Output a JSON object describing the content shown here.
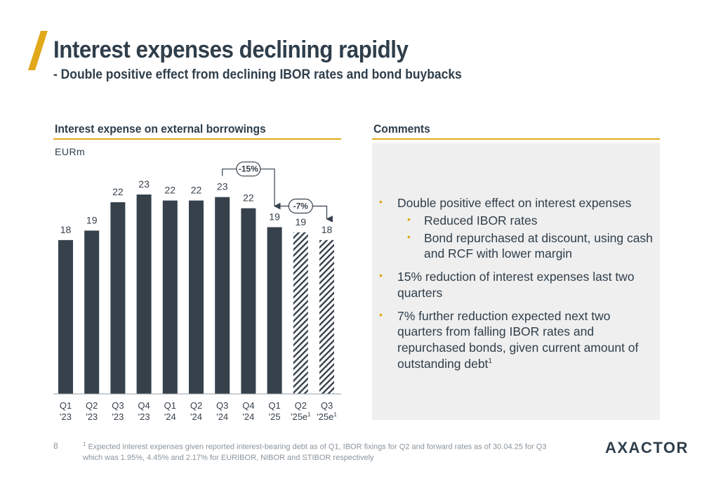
{
  "header": {
    "title": "Interest expenses declining rapidly",
    "subtitle": "- Double positive effect from declining IBOR rates and bond buybacks"
  },
  "left_section": {
    "title": "Interest expense on external borrowings",
    "unit": "EURm"
  },
  "right_section": {
    "title": "Comments",
    "bullets": [
      {
        "text": "Double positive effect on interest expenses",
        "sub": [
          "Reduced IBOR rates",
          "Bond repurchased at discount, using cash and RCF with lower margin"
        ]
      },
      {
        "text": "15% reduction of interest expenses last two quarters"
      },
      {
        "text": "7% further reduction expected next two quarters from falling IBOR rates and repurchased bonds, given current amount of outstanding debt",
        "sup": "1"
      }
    ]
  },
  "chart_data": {
    "type": "bar",
    "unit": "EURm",
    "categories": [
      {
        "q": "Q1",
        "y": "'23",
        "sup": ""
      },
      {
        "q": "Q2",
        "y": "'23",
        "sup": ""
      },
      {
        "q": "Q3",
        "y": "'23",
        "sup": ""
      },
      {
        "q": "Q4",
        "y": "'23",
        "sup": ""
      },
      {
        "q": "Q1",
        "y": "'24",
        "sup": ""
      },
      {
        "q": "Q2",
        "y": "'24",
        "sup": ""
      },
      {
        "q": "Q3",
        "y": "'24",
        "sup": ""
      },
      {
        "q": "Q4",
        "y": "'24",
        "sup": ""
      },
      {
        "q": "Q1",
        "y": "'25",
        "sup": ""
      },
      {
        "q": "Q2",
        "y": "'25e",
        "sup": "1"
      },
      {
        "q": "Q3",
        "y": "'25e",
        "sup": "1"
      }
    ],
    "values": [
      17.9,
      19.0,
      22.3,
      23.2,
      22.5,
      22.5,
      22.9,
      21.6,
      19.4,
      18.8,
      17.9
    ],
    "labels": [
      "18",
      "19",
      "22",
      "23",
      "22",
      "22",
      "23",
      "22",
      "19",
      "19",
      "18"
    ],
    "estimated": [
      false,
      false,
      false,
      false,
      false,
      false,
      false,
      false,
      false,
      true,
      true
    ],
    "ylim": [
      0,
      23.2
    ],
    "annotations": [
      {
        "text": "-15%",
        "from": 6,
        "to": 8
      },
      {
        "text": "-7%",
        "from": 8,
        "to": 10
      }
    ],
    "colors": {
      "bar": "#36414c",
      "accent": "#e0a81a"
    }
  },
  "footer": {
    "page": "8",
    "footnote_mark": "1",
    "footnote": "Expected interest expenses given reported interest-bearing debt as of Q1, IBOR fixings for Q2 and forward rates as of 30.04.25 for Q3 which was 1.95%, 4.45% and 2.17% for EURIBOR, NIBOR and STIBOR respectively",
    "logo": "AXACTOR"
  }
}
